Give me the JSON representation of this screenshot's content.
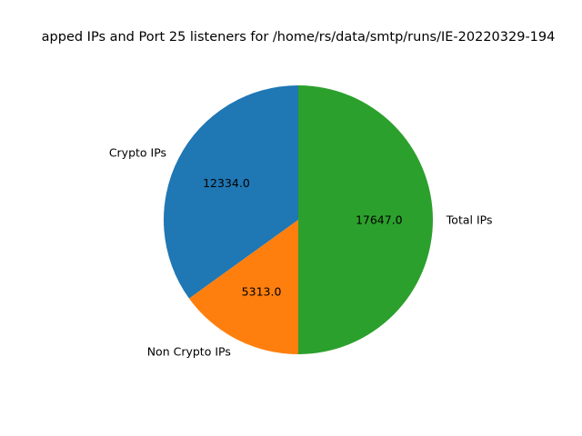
{
  "chart_data": {
    "type": "pie",
    "title": "apped IPs and Port 25 listeners for /home/rs/data/smtp/runs/IE-20220329-194",
    "slices": [
      {
        "label": "Crypto IPs",
        "value": 12334.0,
        "display": "12334.0",
        "color": "#1f77b4"
      },
      {
        "label": "Non Crypto IPs",
        "value": 5313.0,
        "display": "5313.0",
        "color": "#ff7f0e"
      },
      {
        "label": "Total IPs",
        "value": 17647.0,
        "display": "17647.0",
        "color": "#2ca02c"
      }
    ],
    "start_angle": 90,
    "direction": "counterclockwise",
    "legend": "none"
  }
}
